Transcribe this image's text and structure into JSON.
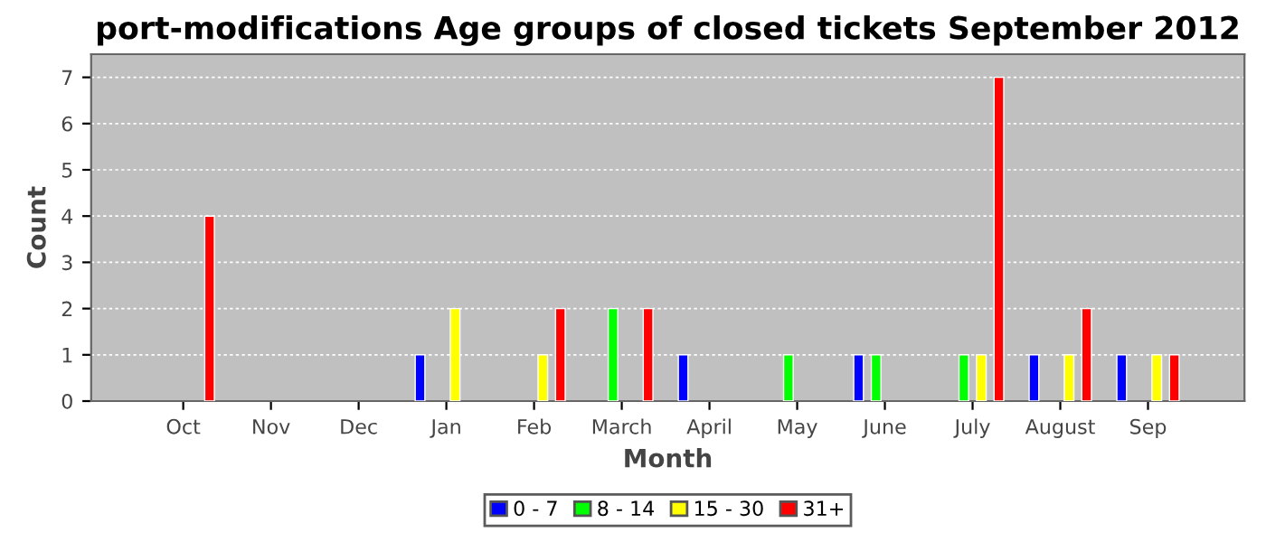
{
  "chart_data": {
    "type": "bar",
    "title": "port-modifications Age groups of closed tickets September 2012",
    "xlabel": "Month",
    "ylabel": "Count",
    "categories": [
      "Oct",
      "Nov",
      "Dec",
      "Jan",
      "Feb",
      "March",
      "April",
      "May",
      "June",
      "July",
      "August",
      "Sep"
    ],
    "series": [
      {
        "name": "0 - 7",
        "color": "#0000ff",
        "values": [
          0,
          0,
          0,
          1,
          0,
          0,
          1,
          0,
          1,
          0,
          1,
          1
        ]
      },
      {
        "name": "8 - 14",
        "color": "#00ff00",
        "values": [
          0,
          0,
          0,
          0,
          0,
          2,
          0,
          1,
          1,
          1,
          0,
          0
        ]
      },
      {
        "name": "15 - 30",
        "color": "#ffff00",
        "values": [
          0,
          0,
          0,
          2,
          1,
          0,
          0,
          0,
          0,
          1,
          1,
          1
        ]
      },
      {
        "name": "31+",
        "color": "#ff0000",
        "values": [
          4,
          0,
          0,
          0,
          2,
          2,
          0,
          0,
          0,
          7,
          2,
          1
        ]
      }
    ],
    "ylim": [
      0,
      7.5
    ],
    "yticks": [
      0,
      1,
      2,
      3,
      4,
      5,
      6,
      7
    ],
    "grid": "y",
    "legend": "bottom"
  }
}
